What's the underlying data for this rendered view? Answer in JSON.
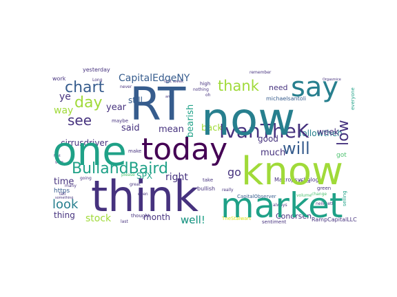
{
  "palette": {
    "dark_purple": "#440154",
    "indigo": "#46327e",
    "blue": "#365c8d",
    "teal_blue": "#277f8e",
    "teal": "#1fa187",
    "green": "#4ac16d",
    "lime": "#a0da39",
    "yellow": "#d8e219"
  },
  "words": [
    {
      "text": "think",
      "color": "indigo"
    },
    {
      "text": "RT",
      "color": "blue"
    },
    {
      "text": "now",
      "color": "teal_blue"
    },
    {
      "text": "know",
      "color": "lime"
    },
    {
      "text": "market",
      "color": "teal"
    },
    {
      "text": "one",
      "color": "teal"
    },
    {
      "text": "today",
      "color": "dark_purple"
    },
    {
      "text": "say",
      "color": "teal_blue"
    },
    {
      "text": "IvanTheK",
      "color": "indigo"
    },
    {
      "text": "BullandBaird",
      "color": "teal"
    },
    {
      "text": "chart",
      "color": "blue"
    },
    {
      "text": "will",
      "color": "blue"
    },
    {
      "text": "day",
      "color": "lime"
    },
    {
      "text": "thank",
      "color": "lime"
    },
    {
      "text": "see",
      "color": "indigo"
    },
    {
      "text": "CapitalEdgeNY",
      "color": "blue"
    },
    {
      "text": "low",
      "color": "indigo"
    },
    {
      "text": "look",
      "color": "teal_blue"
    },
    {
      "text": "followtheh",
      "color": "teal_blue"
    },
    {
      "text": "cirrusdriver",
      "color": "indigo"
    },
    {
      "text": "stock",
      "color": "lime"
    },
    {
      "text": "mean",
      "color": "indigo"
    },
    {
      "text": "bearish",
      "color": "teal"
    },
    {
      "text": "back",
      "color": "lime"
    },
    {
      "text": "go",
      "color": "indigo"
    },
    {
      "text": "time",
      "color": "indigo"
    },
    {
      "text": "year",
      "color": "indigo"
    },
    {
      "text": "said",
      "color": "indigo"
    },
    {
      "text": "right",
      "color": "indigo"
    },
    {
      "text": "well",
      "color": "indigo"
    },
    {
      "text": "still",
      "color": "blue"
    },
    {
      "text": "need",
      "color": "indigo"
    },
    {
      "text": "much",
      "color": "indigo"
    },
    {
      "text": "good",
      "color": "indigo"
    },
    {
      "text": "week",
      "color": "indigo"
    },
    {
      "text": "month",
      "color": "indigo"
    },
    {
      "text": "way",
      "color": "lime"
    },
    {
      "text": "ye",
      "color": "indigo"
    },
    {
      "text": "SPX",
      "color": "teal"
    },
    {
      "text": "thing",
      "color": "indigo"
    },
    {
      "text": "https",
      "color": "blue"
    },
    {
      "text": "Conorsen",
      "color": "indigo"
    },
    {
      "text": "RampCapitalLLC",
      "color": "indigo"
    },
    {
      "text": "Macropsychology",
      "color": "indigo"
    },
    {
      "text": "michaelsantoli",
      "color": "blue"
    },
    {
      "text": "yesterday",
      "color": "indigo"
    },
    {
      "text": "work",
      "color": "indigo"
    },
    {
      "text": "remember",
      "color": "indigo"
    },
    {
      "text": "maybe",
      "color": "indigo"
    },
    {
      "text": "bullish",
      "color": "indigo"
    },
    {
      "text": "CapitalObserver",
      "color": "blue"
    },
    {
      "text": "folks",
      "color": "indigo"
    },
    {
      "text": "green",
      "color": "indigo"
    },
    {
      "text": "sentiment",
      "color": "indigo"
    },
    {
      "text": "last week",
      "color": "indigo"
    },
    {
      "text": "make",
      "color": "indigo"
    },
    {
      "text": "even",
      "color": "indigo"
    },
    {
      "text": "please",
      "color": "green"
    },
    {
      "text": "thought",
      "color": "indigo"
    },
    {
      "text": "never",
      "color": "indigo"
    },
    {
      "text": "take",
      "color": "indigo"
    },
    {
      "text": "high",
      "color": "indigo"
    },
    {
      "text": "many",
      "color": "indigo"
    },
    {
      "text": "got",
      "color": "green"
    },
    {
      "text": "volume",
      "color": "green"
    },
    {
      "text": "always",
      "color": "indigo"
    },
    {
      "text": "really",
      "color": "indigo"
    },
    {
      "text": "nothing",
      "color": "indigo"
    },
    {
      "text": "tell",
      "color": "indigo"
    },
    {
      "text": "going",
      "color": "indigo"
    },
    {
      "text": "something",
      "color": "indigo"
    },
    {
      "text": "everyone",
      "color": "teal"
    },
    {
      "text": "selling",
      "color": "teal"
    },
    {
      "text": "oh",
      "color": "indigo"
    },
    {
      "text": "neilksethi",
      "color": "indigo"
    },
    {
      "text": "last",
      "color": "indigo"
    },
    {
      "text": "great",
      "color": "indigo"
    },
    {
      "text": "Orgasmice",
      "color": "indigo"
    },
    {
      "text": "change",
      "color": "green"
    },
    {
      "text": "TheStalwart",
      "color": "yellow"
    },
    {
      "text": "amp",
      "color": "indigo"
    },
    {
      "text": "first",
      "color": "indigo"
    },
    {
      "text": "Long",
      "color": "indigo"
    },
    {
      "text": "guys",
      "color": "indigo"
    },
    {
      "text": "well!",
      "color": "teal"
    }
  ]
}
